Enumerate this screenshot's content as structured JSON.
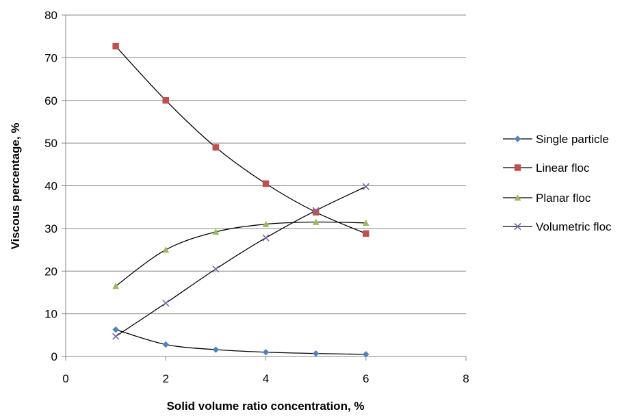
{
  "chart_data": {
    "type": "line",
    "title": "",
    "xlabel": "Solid volume ratio concentration,  %",
    "ylabel": "Viscous percentage, %",
    "xlim": [
      0,
      8
    ],
    "ylim": [
      0,
      80
    ],
    "x_ticks": [
      "0",
      "2",
      "4",
      "6",
      "8"
    ],
    "y_ticks": [
      "0",
      "10",
      "20",
      "30",
      "40",
      "50",
      "60",
      "70",
      "80"
    ],
    "grid": "horizontal",
    "legend_position": "right",
    "x": [
      1,
      2,
      3,
      4,
      5,
      6
    ],
    "series": [
      {
        "name": "Single particle",
        "values": [
          6.3,
          2.8,
          1.6,
          1.0,
          0.7,
          0.5
        ],
        "color": "#4f81bd",
        "marker": "diamond"
      },
      {
        "name": "Linear floc",
        "values": [
          72.7,
          60.0,
          49.0,
          40.5,
          33.8,
          28.8
        ],
        "color": "#c0504d",
        "marker": "square"
      },
      {
        "name": "Planar floc",
        "values": [
          16.5,
          25.0,
          29.2,
          31.0,
          31.5,
          31.3
        ],
        "color": "#9bbb59",
        "marker": "triangle"
      },
      {
        "name": "Volumetric floc",
        "values": [
          4.7,
          12.5,
          20.5,
          27.8,
          34.2,
          39.8
        ],
        "color": "#8064a2",
        "marker": "x"
      }
    ]
  }
}
